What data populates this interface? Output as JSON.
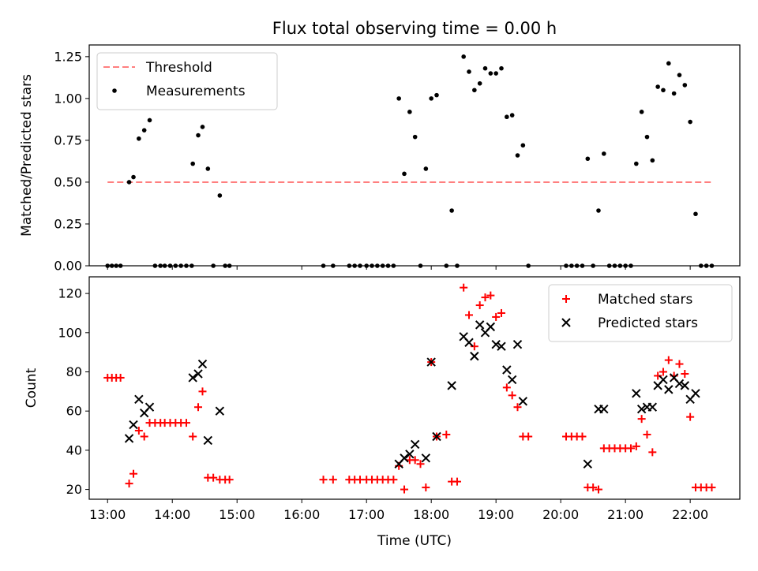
{
  "chart_data": [
    {
      "type": "scatter",
      "title": "Flux total observing time = 0.00 h",
      "xlabel": "",
      "ylabel": "Matched/Predicted stars",
      "xlim": [
        "12:43",
        "22:46"
      ],
      "ylim": [
        0,
        1.32
      ],
      "yticks": [
        "0.00",
        "0.25",
        "0.50",
        "0.75",
        "1.00",
        "1.25"
      ],
      "ytick_values": [
        0,
        0.25,
        0.5,
        0.75,
        1.0,
        1.25
      ],
      "x_tick_values": [
        "13:00",
        "14:00",
        "15:00",
        "16:00",
        "17:00",
        "18:00",
        "19:00",
        "20:00",
        "21:00",
        "22:00"
      ],
      "legend_position": "upper-left",
      "threshold": {
        "name": "Threshold",
        "value": 0.5,
        "x_start": "13:00",
        "x_end": "22:20",
        "color": "#ff7f7f"
      },
      "series": [
        {
          "name": "Measurements",
          "color": "#000000",
          "marker": "dot",
          "points": [
            [
              "13:00",
              0
            ],
            [
              "13:04",
              0
            ],
            [
              "13:08",
              0
            ],
            [
              "13:12",
              0
            ],
            [
              "13:20",
              0.5
            ],
            [
              "13:24",
              0.53
            ],
            [
              "13:29",
              0.76
            ],
            [
              "13:34",
              0.81
            ],
            [
              "13:39",
              0.87
            ],
            [
              "13:44",
              0
            ],
            [
              "13:49",
              0
            ],
            [
              "13:53",
              0
            ],
            [
              "13:58",
              0
            ],
            [
              "14:03",
              0
            ],
            [
              "14:08",
              0
            ],
            [
              "14:13",
              0
            ],
            [
              "14:18",
              0
            ],
            [
              "14:19",
              0.61
            ],
            [
              "14:24",
              0.78
            ],
            [
              "14:28",
              0.83
            ],
            [
              "14:33",
              0.58
            ],
            [
              "14:38",
              0
            ],
            [
              "14:44",
              0.42
            ],
            [
              "14:49",
              0
            ],
            [
              "14:53",
              0
            ],
            [
              "16:20",
              0
            ],
            [
              "16:29",
              0
            ],
            [
              "16:44",
              0
            ],
            [
              "16:49",
              0
            ],
            [
              "16:54",
              0
            ],
            [
              "17:00",
              0
            ],
            [
              "17:05",
              0
            ],
            [
              "17:10",
              0
            ],
            [
              "17:15",
              0
            ],
            [
              "17:20",
              0
            ],
            [
              "17:25",
              0
            ],
            [
              "17:30",
              1.0
            ],
            [
              "17:35",
              0.55
            ],
            [
              "17:40",
              0.92
            ],
            [
              "17:45",
              0.77
            ],
            [
              "17:50",
              0
            ],
            [
              "17:55",
              0.58
            ],
            [
              "18:00",
              1.0
            ],
            [
              "18:05",
              1.02
            ],
            [
              "18:14",
              0
            ],
            [
              "18:19",
              0.33
            ],
            [
              "18:24",
              0
            ],
            [
              "18:30",
              1.25
            ],
            [
              "18:35",
              1.16
            ],
            [
              "18:40",
              1.05
            ],
            [
              "18:45",
              1.09
            ],
            [
              "18:50",
              1.18
            ],
            [
              "18:55",
              1.15
            ],
            [
              "19:00",
              1.15
            ],
            [
              "19:05",
              1.18
            ],
            [
              "19:10",
              0.89
            ],
            [
              "19:15",
              0.9
            ],
            [
              "19:20",
              0.66
            ],
            [
              "19:25",
              0.72
            ],
            [
              "19:30",
              0
            ],
            [
              "20:05",
              0
            ],
            [
              "20:10",
              0
            ],
            [
              "20:15",
              0
            ],
            [
              "20:20",
              0
            ],
            [
              "20:25",
              0.64
            ],
            [
              "20:30",
              0
            ],
            [
              "20:35",
              0.33
            ],
            [
              "20:40",
              0.67
            ],
            [
              "20:45",
              0
            ],
            [
              "20:50",
              0
            ],
            [
              "20:55",
              0
            ],
            [
              "21:00",
              0
            ],
            [
              "21:05",
              0
            ],
            [
              "21:10",
              0.61
            ],
            [
              "21:15",
              0.92
            ],
            [
              "21:20",
              0.77
            ],
            [
              "21:25",
              0.63
            ],
            [
              "21:30",
              1.07
            ],
            [
              "21:35",
              1.05
            ],
            [
              "21:40",
              1.21
            ],
            [
              "21:45",
              1.03
            ],
            [
              "21:50",
              1.14
            ],
            [
              "21:55",
              1.08
            ],
            [
              "22:00",
              0.86
            ],
            [
              "22:05",
              0.31
            ],
            [
              "22:10",
              0
            ],
            [
              "22:15",
              0
            ],
            [
              "22:20",
              0
            ]
          ]
        }
      ]
    },
    {
      "type": "scatter",
      "title": "",
      "xlabel": "Time (UTC)",
      "ylabel": "Count",
      "xlim": [
        "12:43",
        "22:46"
      ],
      "ylim": [
        15,
        128.5
      ],
      "yticks": [
        "20",
        "40",
        "60",
        "80",
        "100",
        "120"
      ],
      "ytick_values": [
        20,
        40,
        60,
        80,
        100,
        120
      ],
      "xticks": [
        "13:00",
        "14:00",
        "15:00",
        "16:00",
        "17:00",
        "18:00",
        "19:00",
        "20:00",
        "21:00",
        "22:00"
      ],
      "x_tick_values": [
        "13:00",
        "14:00",
        "15:00",
        "16:00",
        "17:00",
        "18:00",
        "19:00",
        "20:00",
        "21:00",
        "22:00"
      ],
      "legend_position": "upper-right",
      "series": [
        {
          "name": "Matched stars",
          "color": "#ff0000",
          "marker": "plus",
          "points": [
            [
              "13:00",
              77
            ],
            [
              "13:04",
              77
            ],
            [
              "13:08",
              77
            ],
            [
              "13:12",
              77
            ],
            [
              "13:20",
              23
            ],
            [
              "13:24",
              28
            ],
            [
              "13:29",
              50
            ],
            [
              "13:34",
              47
            ],
            [
              "13:39",
              54
            ],
            [
              "13:44",
              54
            ],
            [
              "13:49",
              54
            ],
            [
              "13:53",
              54
            ],
            [
              "13:58",
              54
            ],
            [
              "14:03",
              54
            ],
            [
              "14:08",
              54
            ],
            [
              "14:13",
              54
            ],
            [
              "14:19",
              47
            ],
            [
              "14:24",
              62
            ],
            [
              "14:28",
              70
            ],
            [
              "14:33",
              26
            ],
            [
              "14:38",
              26
            ],
            [
              "14:44",
              25
            ],
            [
              "14:49",
              25
            ],
            [
              "14:53",
              25
            ],
            [
              "16:20",
              25
            ],
            [
              "16:29",
              25
            ],
            [
              "16:44",
              25
            ],
            [
              "16:49",
              25
            ],
            [
              "16:54",
              25
            ],
            [
              "17:00",
              25
            ],
            [
              "17:05",
              25
            ],
            [
              "17:10",
              25
            ],
            [
              "17:15",
              25
            ],
            [
              "17:20",
              25
            ],
            [
              "17:25",
              25
            ],
            [
              "17:30",
              32
            ],
            [
              "17:35",
              20
            ],
            [
              "17:40",
              35
            ],
            [
              "17:45",
              35
            ],
            [
              "17:50",
              33
            ],
            [
              "17:55",
              21
            ],
            [
              "18:00",
              85
            ],
            [
              "18:05",
              47
            ],
            [
              "18:14",
              48
            ],
            [
              "18:19",
              24
            ],
            [
              "18:24",
              24
            ],
            [
              "18:30",
              123
            ],
            [
              "18:35",
              109
            ],
            [
              "18:40",
              93
            ],
            [
              "18:45",
              114
            ],
            [
              "18:50",
              118
            ],
            [
              "18:55",
              119
            ],
            [
              "19:00",
              108
            ],
            [
              "19:05",
              110
            ],
            [
              "19:10",
              72
            ],
            [
              "19:15",
              68
            ],
            [
              "19:20",
              62
            ],
            [
              "19:25",
              47
            ],
            [
              "19:30",
              47
            ],
            [
              "20:05",
              47
            ],
            [
              "20:10",
              47
            ],
            [
              "20:15",
              47
            ],
            [
              "20:20",
              47
            ],
            [
              "20:25",
              21
            ],
            [
              "20:30",
              21
            ],
            [
              "20:35",
              20
            ],
            [
              "20:40",
              41
            ],
            [
              "20:45",
              41
            ],
            [
              "20:50",
              41
            ],
            [
              "20:55",
              41
            ],
            [
              "21:00",
              41
            ],
            [
              "21:05",
              41
            ],
            [
              "21:10",
              42
            ],
            [
              "21:15",
              56
            ],
            [
              "21:20",
              48
            ],
            [
              "21:25",
              39
            ],
            [
              "21:30",
              78
            ],
            [
              "21:35",
              80
            ],
            [
              "21:40",
              86
            ],
            [
              "21:45",
              78
            ],
            [
              "21:50",
              84
            ],
            [
              "21:55",
              79
            ],
            [
              "22:00",
              57
            ],
            [
              "22:05",
              21
            ],
            [
              "22:10",
              21
            ],
            [
              "22:15",
              21
            ],
            [
              "22:20",
              21
            ]
          ]
        },
        {
          "name": "Predicted stars",
          "color": "#000000",
          "marker": "x",
          "points": [
            [
              "13:20",
              46
            ],
            [
              "13:24",
              53
            ],
            [
              "13:29",
              66
            ],
            [
              "13:34",
              59
            ],
            [
              "13:39",
              62
            ],
            [
              "14:19",
              77
            ],
            [
              "14:24",
              79
            ],
            [
              "14:28",
              84
            ],
            [
              "14:33",
              45
            ],
            [
              "14:44",
              60
            ],
            [
              "17:30",
              33
            ],
            [
              "17:35",
              36
            ],
            [
              "17:40",
              38
            ],
            [
              "17:45",
              43
            ],
            [
              "17:55",
              36
            ],
            [
              "18:00",
              85
            ],
            [
              "18:05",
              47
            ],
            [
              "18:19",
              73
            ],
            [
              "18:30",
              98
            ],
            [
              "18:35",
              95
            ],
            [
              "18:40",
              88
            ],
            [
              "18:45",
              104
            ],
            [
              "18:50",
              100
            ],
            [
              "18:55",
              103
            ],
            [
              "19:00",
              94
            ],
            [
              "19:05",
              93
            ],
            [
              "19:10",
              81
            ],
            [
              "19:15",
              76
            ],
            [
              "19:20",
              94
            ],
            [
              "19:25",
              65
            ],
            [
              "20:25",
              33
            ],
            [
              "20:35",
              61
            ],
            [
              "20:40",
              61
            ],
            [
              "21:10",
              69
            ],
            [
              "21:15",
              61
            ],
            [
              "21:20",
              62
            ],
            [
              "21:25",
              62
            ],
            [
              "21:30",
              73
            ],
            [
              "21:35",
              76
            ],
            [
              "21:40",
              71
            ],
            [
              "21:45",
              77
            ],
            [
              "21:50",
              74
            ],
            [
              "21:55",
              73
            ],
            [
              "22:00",
              66
            ],
            [
              "22:05",
              69
            ]
          ]
        }
      ]
    }
  ]
}
